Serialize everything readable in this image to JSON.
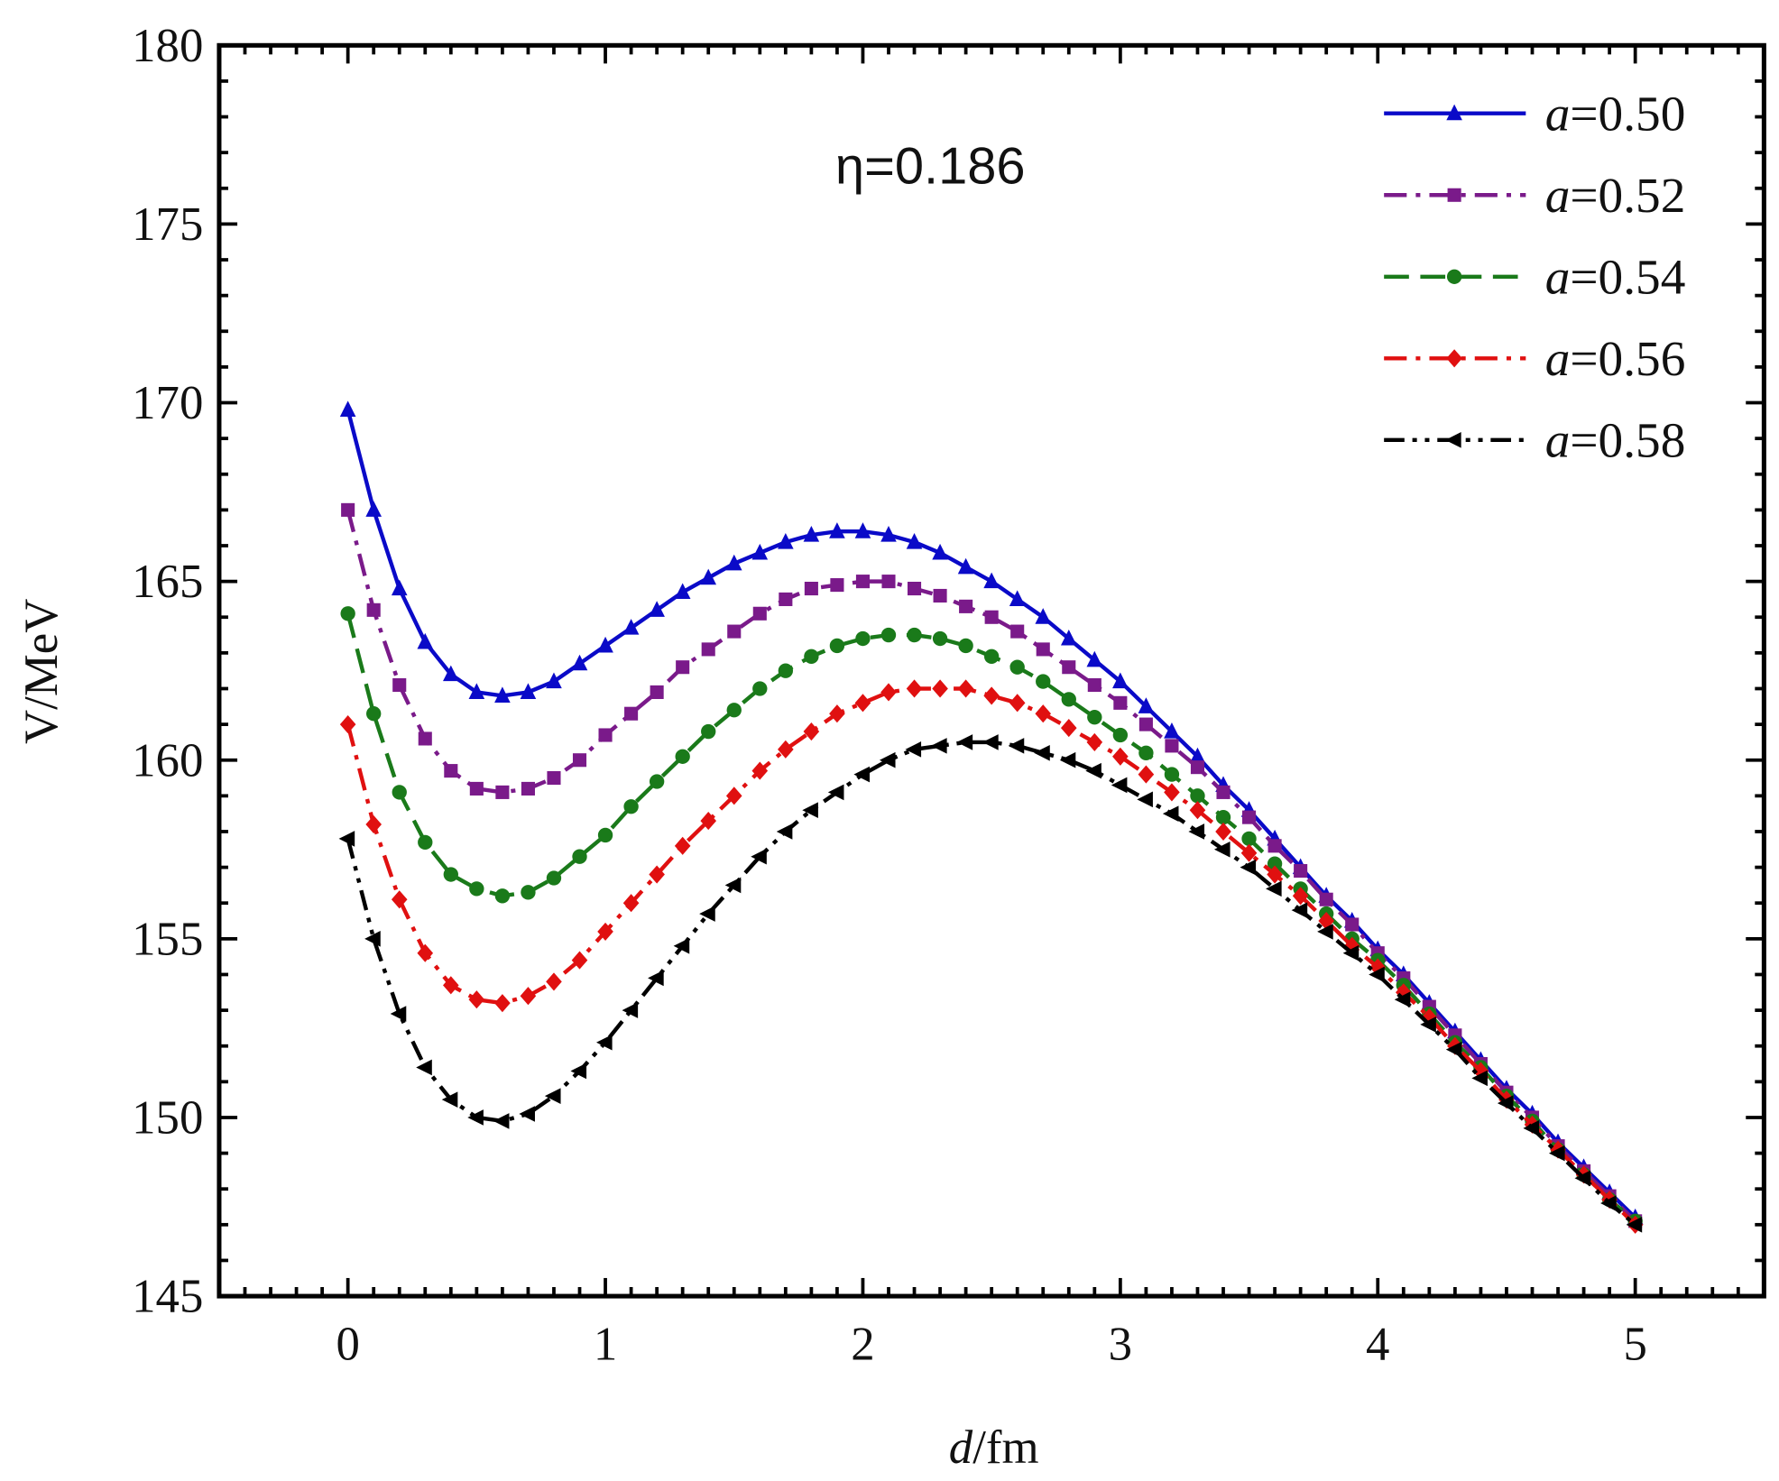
{
  "chart_data": {
    "type": "line",
    "xlabel_italic": "d",
    "xlabel_rest": "/fm",
    "ylabel": "V/MeV",
    "annotation": "η=0.186",
    "xlim": [
      -0.5,
      5.5
    ],
    "ylim": [
      145,
      180
    ],
    "xticks": [
      0,
      1,
      2,
      3,
      4,
      5
    ],
    "yticks": [
      145,
      150,
      155,
      160,
      165,
      170,
      175,
      180
    ],
    "grid": false,
    "legend_position": "top-right",
    "x": [
      0,
      0.1,
      0.2,
      0.3,
      0.4,
      0.5,
      0.6,
      0.7,
      0.8,
      0.9,
      1.0,
      1.1,
      1.2,
      1.3,
      1.4,
      1.5,
      1.6,
      1.7,
      1.8,
      1.9,
      2.0,
      2.1,
      2.2,
      2.3,
      2.4,
      2.5,
      2.6,
      2.7,
      2.8,
      2.9,
      3.0,
      3.1,
      3.2,
      3.3,
      3.4,
      3.5,
      3.6,
      3.7,
      3.8,
      3.9,
      4.0,
      4.1,
      4.2,
      4.3,
      4.4,
      4.5,
      4.6,
      4.7,
      4.8,
      4.9,
      5.0
    ],
    "series": [
      {
        "name": "a=0.50",
        "name_italic": "a",
        "name_rest": "=0.50",
        "color": "#0a0ac8",
        "line": "solid",
        "marker": "triangle-up",
        "values": [
          169.8,
          167.0,
          164.8,
          163.3,
          162.4,
          161.9,
          161.8,
          161.9,
          162.2,
          162.7,
          163.2,
          163.7,
          164.2,
          164.7,
          165.1,
          165.5,
          165.8,
          166.1,
          166.3,
          166.4,
          166.4,
          166.3,
          166.1,
          165.8,
          165.4,
          165.0,
          164.5,
          164.0,
          163.4,
          162.8,
          162.2,
          161.5,
          160.8,
          160.1,
          159.3,
          158.6,
          157.8,
          157.0,
          156.2,
          155.5,
          154.7,
          154.0,
          153.2,
          152.4,
          151.6,
          150.8,
          150.1,
          149.3,
          148.6,
          147.9,
          147.2
        ]
      },
      {
        "name": "a=0.52",
        "name_italic": "a",
        "name_rest": "=0.52",
        "color": "#7a1a8a",
        "line": "dashdot",
        "marker": "square",
        "values": [
          167.0,
          164.2,
          162.1,
          160.6,
          159.7,
          159.2,
          159.1,
          159.2,
          159.5,
          160.0,
          160.7,
          161.3,
          161.9,
          162.6,
          163.1,
          163.6,
          164.1,
          164.5,
          164.8,
          164.9,
          165.0,
          165.0,
          164.8,
          164.6,
          164.3,
          164.0,
          163.6,
          163.1,
          162.6,
          162.1,
          161.6,
          161.0,
          160.4,
          159.8,
          159.1,
          158.4,
          157.6,
          156.9,
          156.1,
          155.4,
          154.6,
          153.9,
          153.1,
          152.3,
          151.5,
          150.7,
          150.0,
          149.2,
          148.5,
          147.8,
          147.1
        ]
      },
      {
        "name": "a=0.54",
        "name_italic": "a",
        "name_rest": "=0.54",
        "color": "#1a7a1a",
        "line": "dashed",
        "marker": "circle",
        "values": [
          164.1,
          161.3,
          159.1,
          157.7,
          156.8,
          156.4,
          156.2,
          156.3,
          156.7,
          157.3,
          157.9,
          158.7,
          159.4,
          160.1,
          160.8,
          161.4,
          162.0,
          162.5,
          162.9,
          163.2,
          163.4,
          163.5,
          163.5,
          163.4,
          163.2,
          162.9,
          162.6,
          162.2,
          161.7,
          161.2,
          160.7,
          160.2,
          159.6,
          159.0,
          158.4,
          157.8,
          157.1,
          156.4,
          155.7,
          155.0,
          154.4,
          153.7,
          152.9,
          152.1,
          151.4,
          150.6,
          149.9,
          149.1,
          148.4,
          147.7,
          147.1
        ]
      },
      {
        "name": "a=0.56",
        "name_italic": "a",
        "name_rest": "=0.56",
        "color": "#e01010",
        "line": "dashdot",
        "marker": "diamond",
        "values": [
          161.0,
          158.2,
          156.1,
          154.6,
          153.7,
          153.3,
          153.2,
          153.4,
          153.8,
          154.4,
          155.2,
          156.0,
          156.8,
          157.6,
          158.3,
          159.0,
          159.7,
          160.3,
          160.8,
          161.3,
          161.6,
          161.9,
          162.0,
          162.0,
          162.0,
          161.8,
          161.6,
          161.3,
          160.9,
          160.5,
          160.1,
          159.6,
          159.1,
          158.6,
          158.0,
          157.4,
          156.8,
          156.2,
          155.5,
          154.8,
          154.2,
          153.5,
          152.8,
          152.0,
          151.3,
          150.5,
          149.8,
          149.1,
          148.4,
          147.7,
          147.0
        ]
      },
      {
        "name": "a=0.58",
        "name_italic": "a",
        "name_rest": "=0.58",
        "color": "#000000",
        "line": "dashdotdot",
        "marker": "triangle-left",
        "values": [
          157.8,
          155.0,
          152.9,
          151.4,
          150.5,
          150.0,
          149.9,
          150.1,
          150.6,
          151.3,
          152.1,
          153.0,
          153.9,
          154.8,
          155.7,
          156.5,
          157.3,
          158.0,
          158.6,
          159.1,
          159.6,
          160.0,
          160.3,
          160.4,
          160.5,
          160.5,
          160.4,
          160.2,
          160.0,
          159.7,
          159.3,
          158.9,
          158.5,
          158.0,
          157.5,
          157.0,
          156.4,
          155.8,
          155.2,
          154.6,
          154.0,
          153.3,
          152.6,
          151.9,
          151.1,
          150.4,
          149.7,
          149.0,
          148.3,
          147.6,
          147.0
        ]
      }
    ]
  }
}
